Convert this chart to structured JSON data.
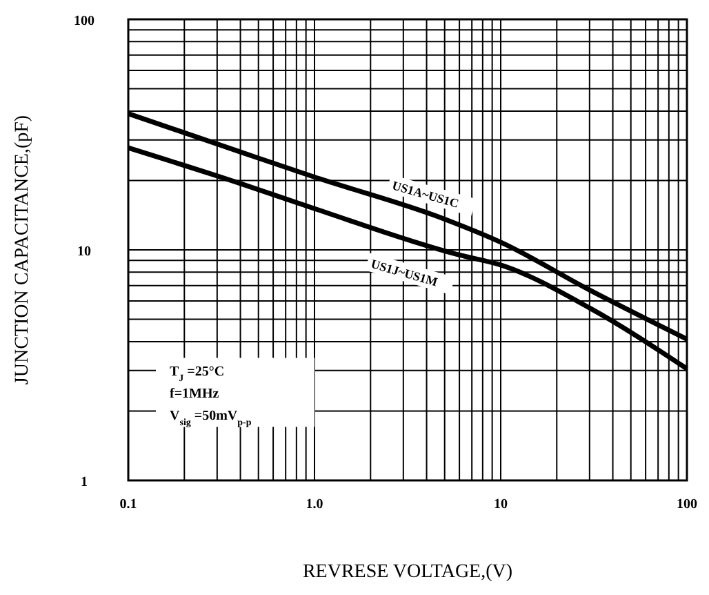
{
  "chart_data": {
    "type": "line",
    "xlabel": "REVRESE VOLTAGE,(V)",
    "ylabel": "JUNCTION CAPACITANCE,(pF)",
    "log": "xy",
    "xlim": [
      0.1,
      100
    ],
    "ylim": [
      1,
      100
    ],
    "xticks": [
      {
        "value": 0.1,
        "label": "0.1"
      },
      {
        "value": 0.2,
        "label": null
      },
      {
        "value": 0.3,
        "label": null
      },
      {
        "value": 0.4,
        "label": null
      },
      {
        "value": 0.5,
        "label": null
      },
      {
        "value": 0.6,
        "label": null
      },
      {
        "value": 0.7,
        "label": null
      },
      {
        "value": 0.8,
        "label": null
      },
      {
        "value": 0.9,
        "label": null
      },
      {
        "value": 1,
        "label": "1.0"
      },
      {
        "value": 2,
        "label": null
      },
      {
        "value": 3,
        "label": null
      },
      {
        "value": 4,
        "label": null
      },
      {
        "value": 5,
        "label": null
      },
      {
        "value": 6,
        "label": null
      },
      {
        "value": 7,
        "label": null
      },
      {
        "value": 8,
        "label": null
      },
      {
        "value": 9,
        "label": null
      },
      10,
      {
        "value": 20,
        "label": null
      },
      {
        "value": 30,
        "label": null
      },
      {
        "value": 40,
        "label": null
      },
      {
        "value": 50,
        "label": null
      },
      {
        "value": 60,
        "label": null
      },
      {
        "value": 70,
        "label": null
      },
      {
        "value": 80,
        "label": null
      },
      {
        "value": 90,
        "label": null
      },
      100
    ],
    "yticks": [
      1,
      {
        "value": 2,
        "label": null
      },
      {
        "value": 3,
        "label": null
      },
      {
        "value": 4,
        "label": null
      },
      {
        "value": 5,
        "label": null
      },
      {
        "value": 6,
        "label": null
      },
      {
        "value": 7,
        "label": null
      },
      {
        "value": 8,
        "label": null
      },
      {
        "value": 9,
        "label": null
      },
      10,
      {
        "value": 20,
        "label": null
      },
      {
        "value": 30,
        "label": null
      },
      {
        "value": 40,
        "label": null
      },
      {
        "value": 50,
        "label": null
      },
      {
        "value": 60,
        "label": null
      },
      {
        "value": 70,
        "label": null
      },
      {
        "value": 80,
        "label": null
      },
      {
        "value": 90,
        "label": null
      },
      100
    ],
    "grid": true,
    "line_style": "solid",
    "series": [
      {
        "name": "US1A~US1C",
        "color": "#000000",
        "x": [
          0.1,
          0.4,
          1,
          5,
          10,
          30,
          100
        ],
        "values": [
          39,
          26.6,
          20.7,
          13.6,
          10.8,
          6.7,
          4.1
        ]
      },
      {
        "name": "US1J~US1M",
        "color": "#000000",
        "x": [
          0.1,
          0.4,
          1,
          6,
          10,
          30,
          100
        ],
        "values": [
          27.7,
          19.4,
          15.1,
          9.5,
          8.6,
          5.6,
          3.05
        ]
      }
    ],
    "annotations": [
      "T$_{J}$ =25°C",
      "f=1MHz",
      "V$_{sig}$ =50mV$_{p-p}$"
    ]
  }
}
